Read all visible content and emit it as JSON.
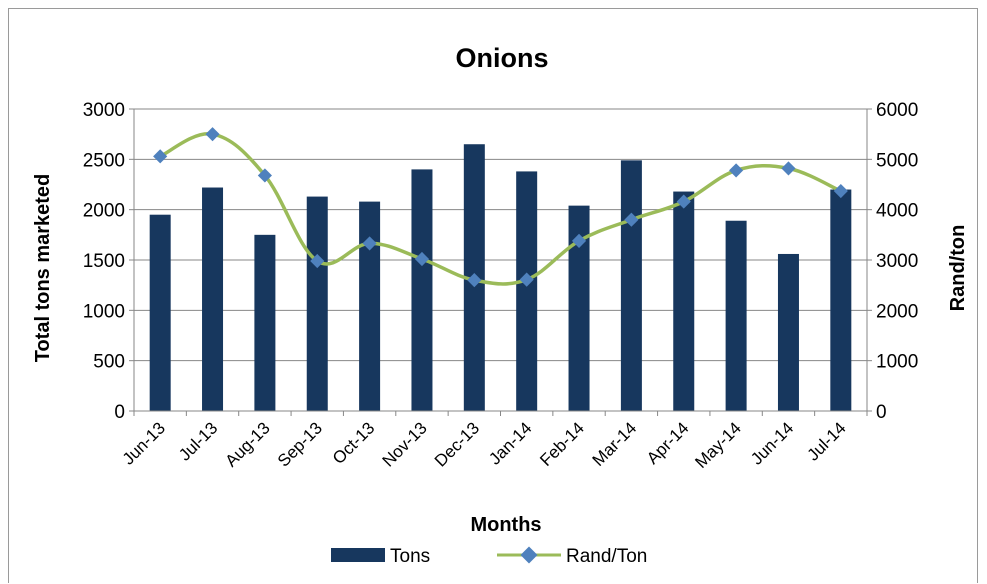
{
  "chart_data": {
    "type": "bar+line",
    "title": "Onions",
    "xlabel": "Months",
    "ylabel": "Total tons marketed",
    "y2label": "Rand/ton",
    "categories": [
      "Jun-13",
      "Jul-13",
      "Aug-13",
      "Sep-13",
      "Oct-13",
      "Nov-13",
      "Dec-13",
      "Jan-14",
      "Feb-14",
      "Mar-14",
      "Apr-14",
      "May-14",
      "Jun-14",
      "Jul-14"
    ],
    "ylim": [
      0,
      3000
    ],
    "yticks": [
      0,
      500,
      1000,
      1500,
      2000,
      2500,
      3000
    ],
    "y2lim": [
      0,
      6000
    ],
    "y2ticks": [
      0,
      1000,
      2000,
      3000,
      4000,
      5000,
      6000
    ],
    "grid": true,
    "legend_position": "bottom",
    "series": [
      {
        "name": "Tons",
        "type": "bar",
        "axis": "left",
        "color": "#17375e",
        "values": [
          1950,
          2220,
          1750,
          2130,
          2080,
          2400,
          2650,
          2380,
          2040,
          2490,
          2180,
          1890,
          1560,
          2200
        ]
      },
      {
        "name": "Rand/Ton",
        "type": "line",
        "axis": "right",
        "color": "#9bbb59",
        "marker_color": "#4f81bd",
        "values": [
          5060,
          5500,
          4680,
          2980,
          3330,
          3020,
          2600,
          2610,
          3380,
          3800,
          4160,
          4780,
          4820,
          4370
        ]
      }
    ]
  }
}
